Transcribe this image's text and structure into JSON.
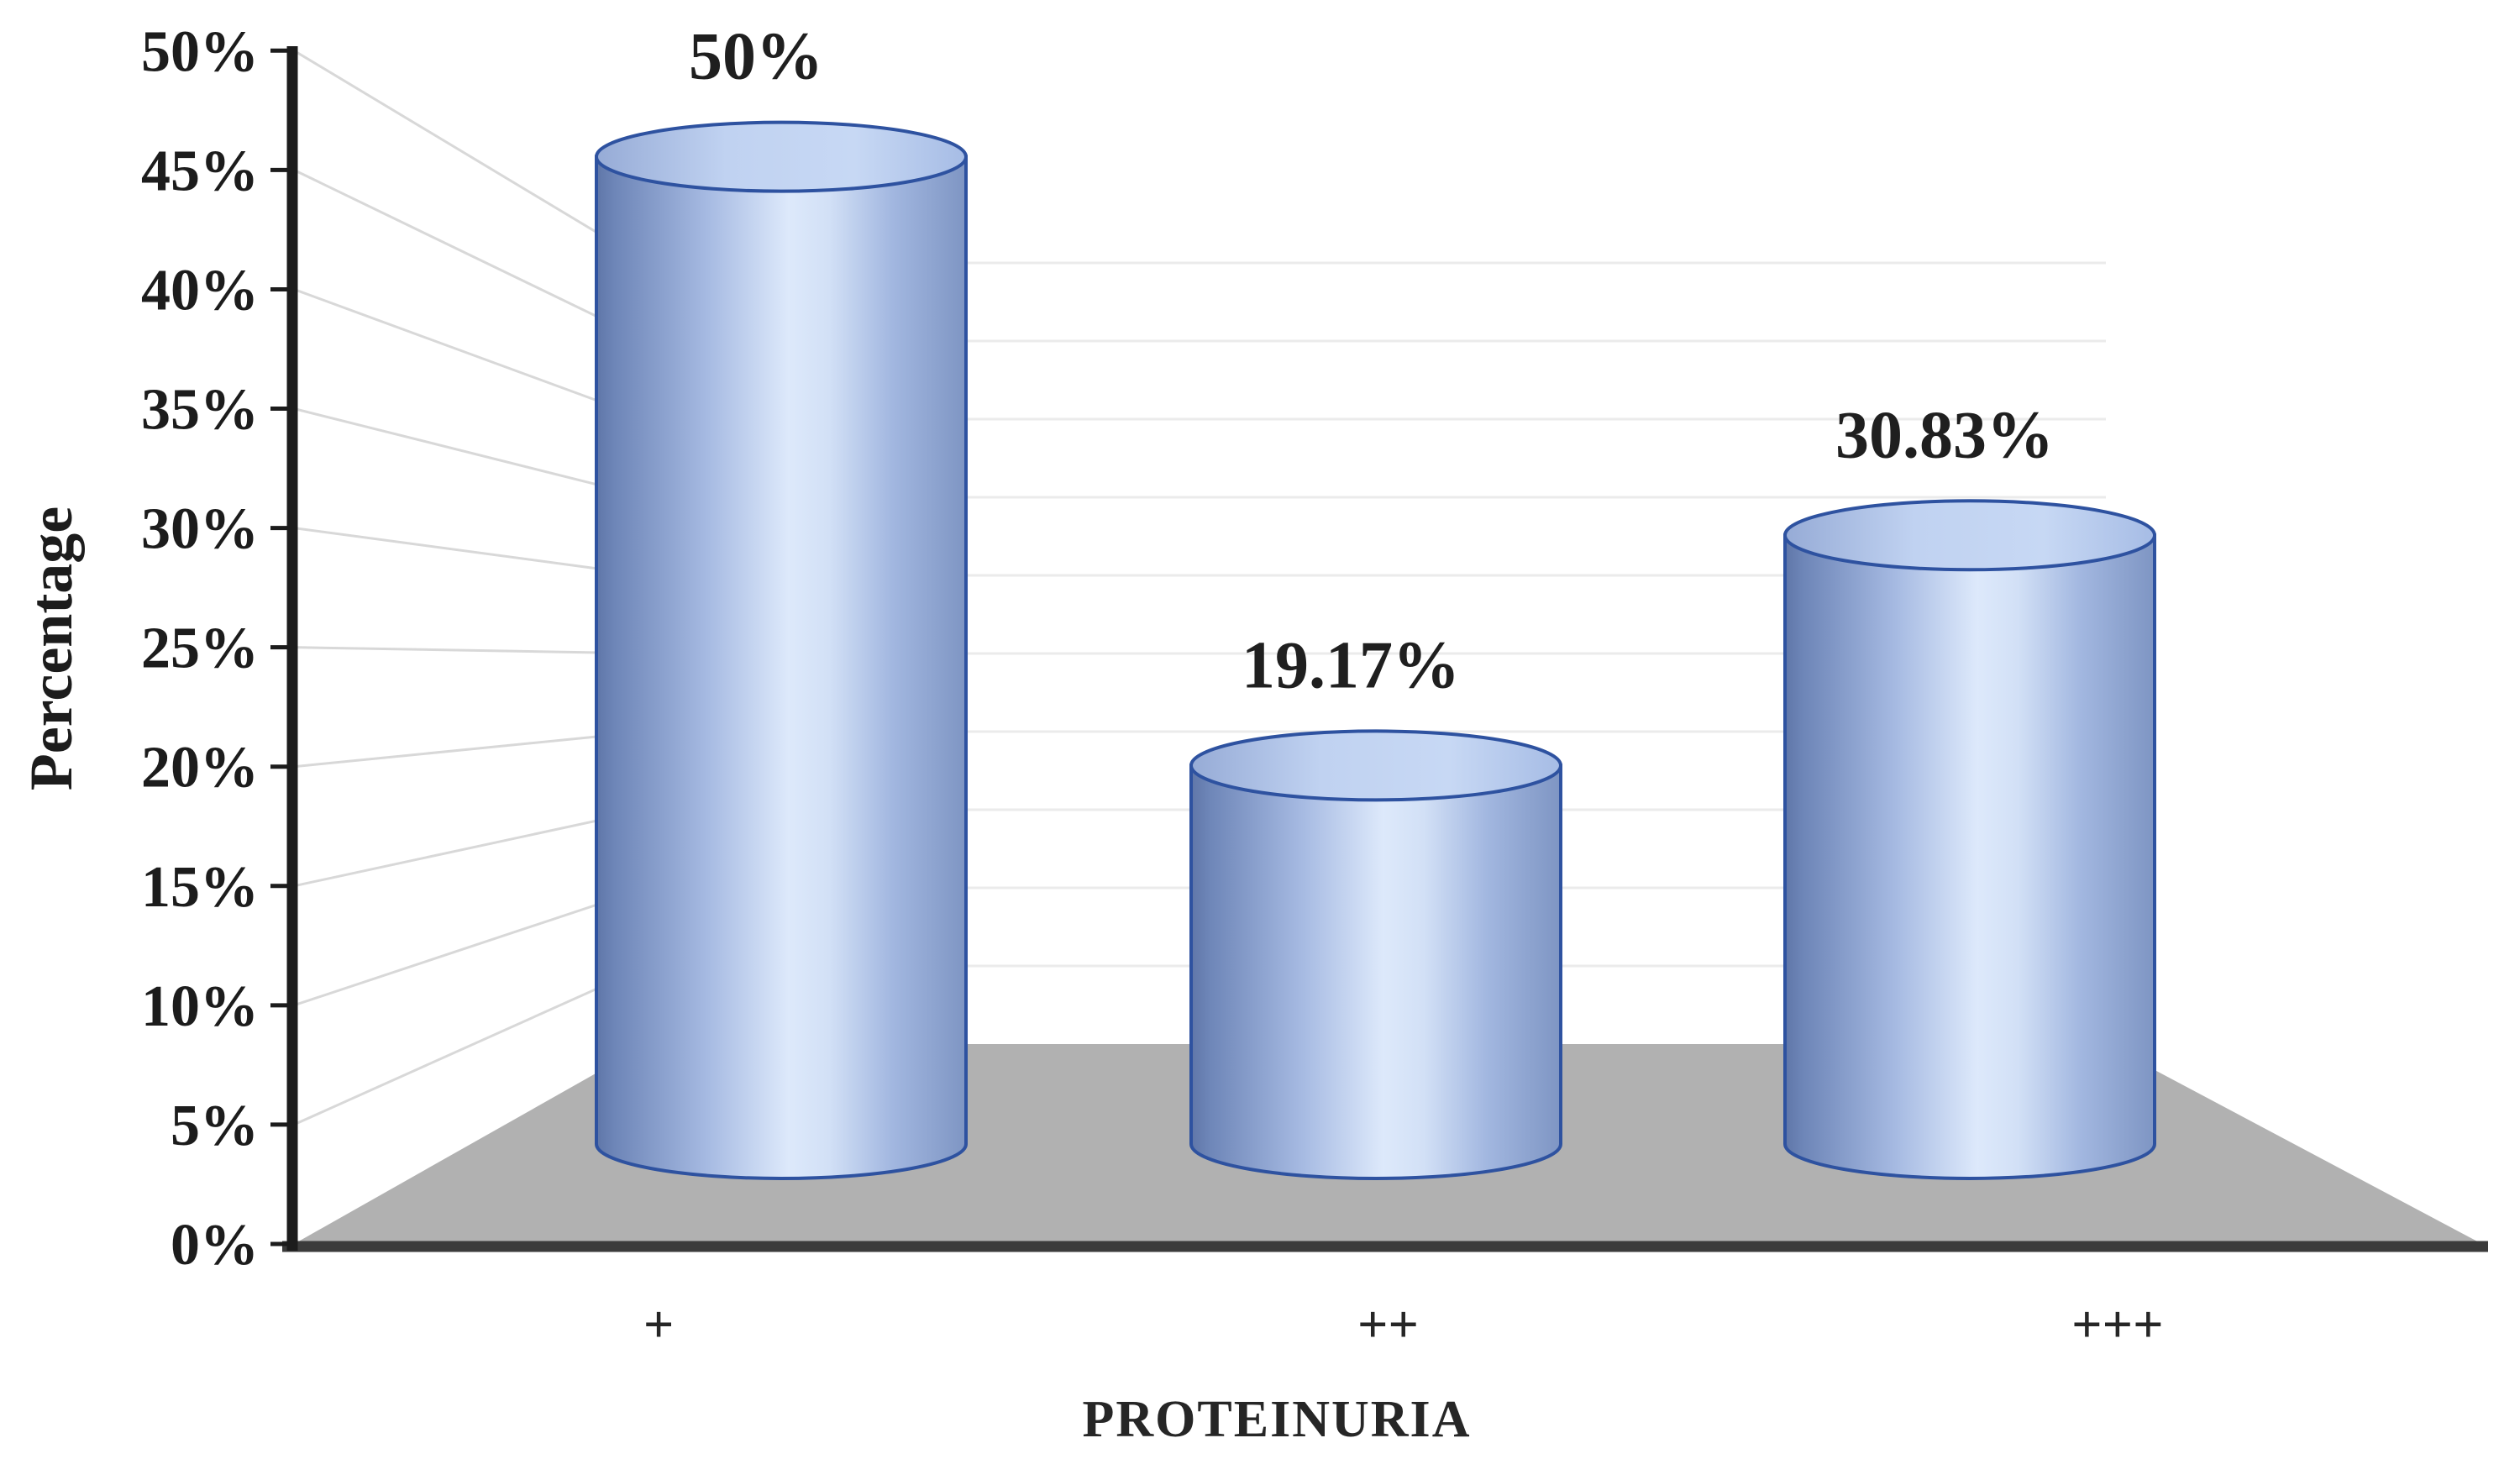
{
  "chart_data": {
    "type": "bar",
    "subtype": "cylinder-3d",
    "title": "",
    "xlabel": "PROTEINURIA",
    "ylabel": "Percentage",
    "categories": [
      "+",
      "++",
      "+++"
    ],
    "values": [
      50,
      19.17,
      30.83
    ],
    "data_labels": [
      "50%",
      "19.17%",
      "30.83%"
    ],
    "ylim": [
      0,
      50
    ],
    "y_tick_step": 5,
    "y_ticks": [
      "0%",
      "5%",
      "10%",
      "15%",
      "20%",
      "25%",
      "30%",
      "35%",
      "40%",
      "45%",
      "50%"
    ],
    "grid": true,
    "legend_position": "none",
    "colors": {
      "bar_outline": "#2e52a0",
      "bar_side_dark": "#5f76a8",
      "bar_side_light": "#dde9fb",
      "bar_top_light": "#c0d2f1",
      "bar_top_dark": "#96abd6",
      "floor": "#b1b1b1",
      "y_axis_line": "#1c1c1c",
      "x_axis_line": "#3b3b3b",
      "gridline_side_wall": "#d8d8d8",
      "gridline_back_wall": "#ebebeb",
      "text": "#1f1f1f"
    }
  }
}
